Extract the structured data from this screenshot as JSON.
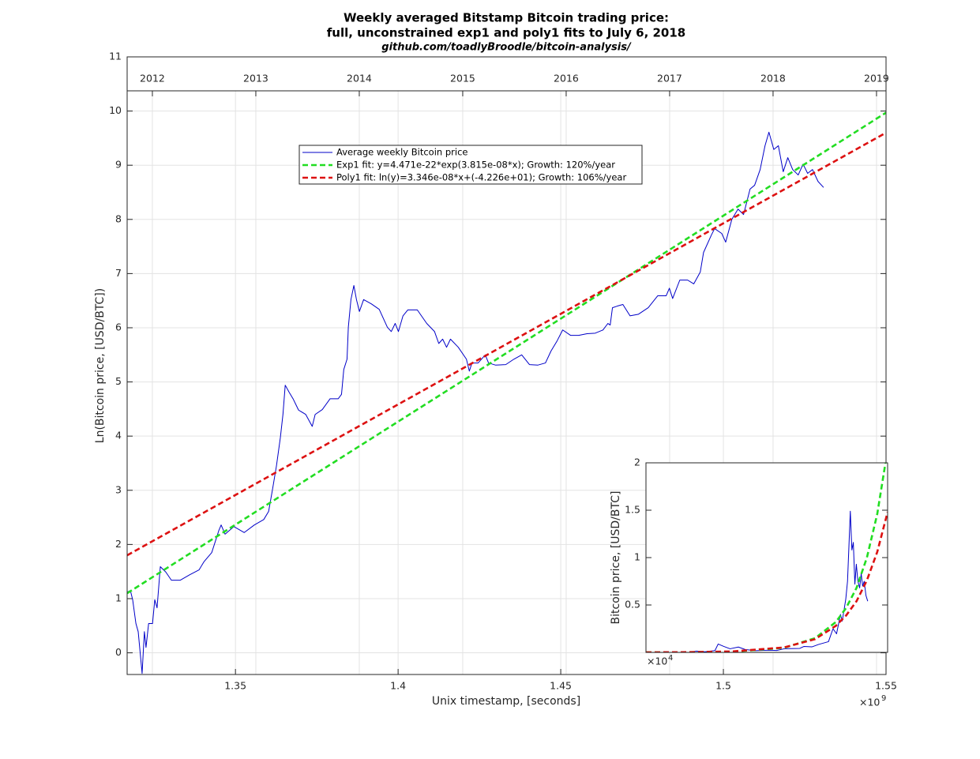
{
  "chart_data": [
    {
      "type": "line",
      "title": [
        "Weekly averaged Bitstamp Bitcoin trading price:",
        "full, unconstrained exp1 and poly1 fits to July 6, 2018",
        "github.com/toadlyBroodle/bitcoin-analysis/"
      ],
      "x_label": "Unix timestamp, [seconds]",
      "y_label": "Ln(Bitcoin price, [USD/BTC])",
      "x_exponent_base": "×10",
      "x_exponent": "9",
      "xlim": [
        1.3167,
        1.55
      ],
      "xticks": [
        1.35,
        1.4,
        1.45,
        1.5,
        1.55
      ],
      "ylim": [
        -0.4,
        11
      ],
      "yticks": [
        0,
        1,
        2,
        3,
        4,
        5,
        6,
        7,
        8,
        9,
        10,
        11
      ],
      "x2lim": [
        2011.756,
        2019.092
      ],
      "x2ticks": [
        2012,
        2013,
        2014,
        2015,
        2016,
        2017,
        2018,
        2019
      ],
      "grid": true,
      "legend": true,
      "series": [
        {
          "name": "Average weekly Bitcoin price",
          "color": "#0000c8",
          "style": "solid",
          "x": [
            1.3167,
            1.3177,
            1.3184,
            1.3194,
            1.3201,
            1.3213,
            1.322,
            1.3225,
            1.3233,
            1.3245,
            1.3252,
            1.3259,
            1.3269,
            1.3286,
            1.3303,
            1.333,
            1.3359,
            1.3388,
            1.3403,
            1.3427,
            1.3449,
            1.3456,
            1.3468,
            1.3495,
            1.3527,
            1.3558,
            1.3587,
            1.3602,
            1.3614,
            1.3626,
            1.3638,
            1.3646,
            1.3653,
            1.3665,
            1.3677,
            1.3694,
            1.3716,
            1.3736,
            1.3745,
            1.3767,
            1.3791,
            1.3816,
            1.3826,
            1.3833,
            1.3843,
            1.3847,
            1.3855,
            1.3864,
            1.3872,
            1.3881,
            1.3894,
            1.3918,
            1.3942,
            1.3967,
            1.3979,
            1.3991,
            1.4001,
            1.4015,
            1.403,
            1.4059,
            1.4088,
            1.4112,
            1.4125,
            1.4137,
            1.4149,
            1.4161,
            1.4185,
            1.421,
            1.4219,
            1.4227,
            1.4246,
            1.4268,
            1.4278,
            1.43,
            1.4331,
            1.4356,
            1.438,
            1.4404,
            1.4429,
            1.4453,
            1.447,
            1.4489,
            1.4506,
            1.453,
            1.4555,
            1.4581,
            1.4606,
            1.463,
            1.4645,
            1.4652,
            1.4659,
            1.4674,
            1.4691,
            1.4713,
            1.4739,
            1.4769,
            1.4798,
            1.4824,
            1.4834,
            1.4844,
            1.4866,
            1.489,
            1.4909,
            1.4929,
            1.4939,
            1.4963,
            1.4973,
            1.4995,
            1.5007,
            1.5026,
            1.5045,
            1.5062,
            1.5082,
            1.5096,
            1.5113,
            1.5128,
            1.514,
            1.5155,
            1.5169,
            1.5184,
            1.5198,
            1.5213,
            1.523,
            1.5245,
            1.5259,
            1.5274,
            1.5291,
            1.5308
          ],
          "values": [
            1.12,
            1.15,
            0.98,
            0.54,
            0.39,
            -0.38,
            0.39,
            0.1,
            0.54,
            0.54,
            0.98,
            0.83,
            1.59,
            1.49,
            1.34,
            1.34,
            1.44,
            1.53,
            1.68,
            1.85,
            2.26,
            2.36,
            2.19,
            2.33,
            2.22,
            2.36,
            2.46,
            2.61,
            3.02,
            3.45,
            3.97,
            4.4,
            4.94,
            4.81,
            4.69,
            4.48,
            4.4,
            4.18,
            4.4,
            4.49,
            4.69,
            4.69,
            4.77,
            5.23,
            5.42,
            6.01,
            6.52,
            6.78,
            6.52,
            6.3,
            6.52,
            6.44,
            6.34,
            6.01,
            5.93,
            6.08,
            5.93,
            6.22,
            6.33,
            6.33,
            6.08,
            5.93,
            5.71,
            5.79,
            5.64,
            5.79,
            5.64,
            5.42,
            5.2,
            5.35,
            5.35,
            5.5,
            5.35,
            5.31,
            5.32,
            5.42,
            5.5,
            5.32,
            5.31,
            5.35,
            5.57,
            5.76,
            5.96,
            5.86,
            5.86,
            5.89,
            5.9,
            5.96,
            6.08,
            6.05,
            6.37,
            6.4,
            6.43,
            6.22,
            6.25,
            6.37,
            6.59,
            6.59,
            6.73,
            6.54,
            6.88,
            6.88,
            6.81,
            7.03,
            7.39,
            7.71,
            7.83,
            7.74,
            7.58,
            8.0,
            8.19,
            8.09,
            8.56,
            8.63,
            8.92,
            9.36,
            9.61,
            9.29,
            9.36,
            8.88,
            9.14,
            8.92,
            8.82,
            9.02,
            8.85,
            8.92,
            8.7,
            8.59
          ]
        },
        {
          "name": "Exp1 fit: y=4.471e-22*exp(3.815e-08*x); Growth: 120%/year",
          "color": "#22dd22",
          "style": "dashed",
          "x": [
            1.3167,
            1.55
          ],
          "values": [
            1.1,
            9.97
          ]
        },
        {
          "name": "Poly1 fit: ln(y)=3.346e-08*x+(-4.226e+01); Growth: 106%/year",
          "color": "#dd1111",
          "style": "dashed",
          "x": [
            1.3167,
            1.55
          ],
          "values": [
            1.8,
            9.6
          ]
        }
      ]
    },
    {
      "type": "line",
      "y_label": "Bitcoin price, [USD/BTC]",
      "y_exponent_base": "×10",
      "y_exponent": "4",
      "xlim": [
        1.3167,
        1.55
      ],
      "ylim": [
        0,
        2
      ],
      "yticks": [
        0.5,
        1,
        1.5,
        2
      ],
      "grid": false,
      "legend": false,
      "series": [
        {
          "name": "Average weekly Bitcoin price",
          "color": "#0000c8",
          "style": "solid",
          "x": [
            1.3167,
            1.33,
            1.36,
            1.3653,
            1.3736,
            1.3833,
            1.3864,
            1.3918,
            1.3979,
            1.4059,
            1.4125,
            1.4219,
            1.4356,
            1.4429,
            1.4506,
            1.4652,
            1.4691,
            1.4769,
            1.4834,
            1.4929,
            1.4973,
            1.5007,
            1.5045,
            1.5062,
            1.5096,
            1.5113,
            1.5128,
            1.514,
            1.5155,
            1.5169,
            1.5184,
            1.5198,
            1.5213,
            1.523,
            1.5245,
            1.5259,
            1.5274,
            1.5291,
            1.5308
          ],
          "values": [
            0.0003,
            0.0004,
            0.0013,
            0.014,
            0.0065,
            0.019,
            0.088,
            0.063,
            0.038,
            0.056,
            0.03,
            0.018,
            0.023,
            0.02,
            0.039,
            0.042,
            0.062,
            0.058,
            0.084,
            0.113,
            0.25,
            0.196,
            0.4,
            0.33,
            0.56,
            0.75,
            1.16,
            1.49,
            1.08,
            1.16,
            0.72,
            0.93,
            0.75,
            0.68,
            0.83,
            0.7,
            0.75,
            0.6,
            0.54
          ]
        },
        {
          "name": "Exp1 fit: y=4.471e-22*exp(3.815e-08*x); Growth: 120%/year",
          "color": "#22dd22",
          "style": "dashed",
          "x": [
            1.3167,
            1.35,
            1.4,
            1.45,
            1.48,
            1.5,
            1.51,
            1.52,
            1.53,
            1.54,
            1.55
          ],
          "values": [
            0.0003,
            0.0011,
            0.0071,
            0.048,
            0.15,
            0.32,
            0.47,
            0.68,
            1.0,
            1.46,
            2.14
          ]
        },
        {
          "name": "Poly1 fit: ln(y)=3.346e-08*x+(-4.226e+01); Growth: 106%/year",
          "color": "#dd1111",
          "style": "dashed",
          "x": [
            1.3167,
            1.35,
            1.4,
            1.45,
            1.48,
            1.5,
            1.51,
            1.52,
            1.53,
            1.54,
            1.55
          ],
          "values": [
            0.0006,
            0.0018,
            0.0098,
            0.052,
            0.14,
            0.28,
            0.39,
            0.54,
            0.76,
            1.06,
            1.48
          ]
        }
      ]
    }
  ]
}
